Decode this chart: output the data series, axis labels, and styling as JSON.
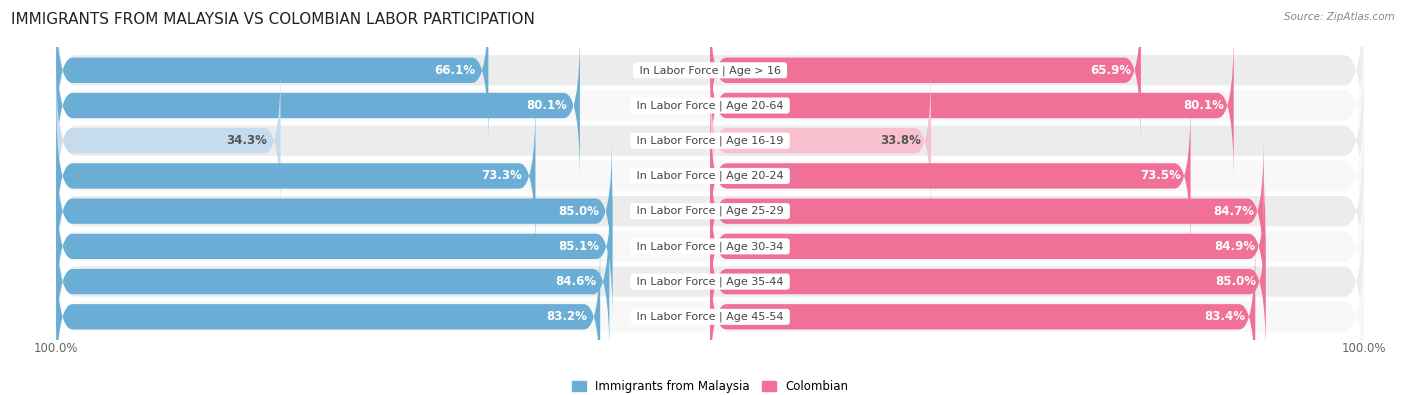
{
  "title": "IMMIGRANTS FROM MALAYSIA VS COLOMBIAN LABOR PARTICIPATION",
  "source": "Source: ZipAtlas.com",
  "categories": [
    "In Labor Force | Age > 16",
    "In Labor Force | Age 20-64",
    "In Labor Force | Age 16-19",
    "In Labor Force | Age 20-24",
    "In Labor Force | Age 25-29",
    "In Labor Force | Age 30-34",
    "In Labor Force | Age 35-44",
    "In Labor Force | Age 45-54"
  ],
  "malaysia_values": [
    66.1,
    80.1,
    34.3,
    73.3,
    85.0,
    85.1,
    84.6,
    83.2
  ],
  "colombian_values": [
    65.9,
    80.1,
    33.8,
    73.5,
    84.7,
    84.9,
    85.0,
    83.4
  ],
  "malaysia_color_full": "#6aaed6",
  "malaysia_color_light": "#c6dcee",
  "colombian_color_full": "#f07098",
  "colombian_color_light": "#f9c0d0",
  "row_bg_even": "#ececec",
  "row_bg_odd": "#f8f8f8",
  "label_white": "#ffffff",
  "label_dark": "#555555",
  "legend_malaysia": "Immigrants from Malaysia",
  "legend_colombian": "Colombian",
  "max_value": 100.0,
  "threshold": 50,
  "title_fontsize": 11,
  "label_fontsize": 8.5,
  "category_fontsize": 8,
  "axis_fontsize": 8.5
}
